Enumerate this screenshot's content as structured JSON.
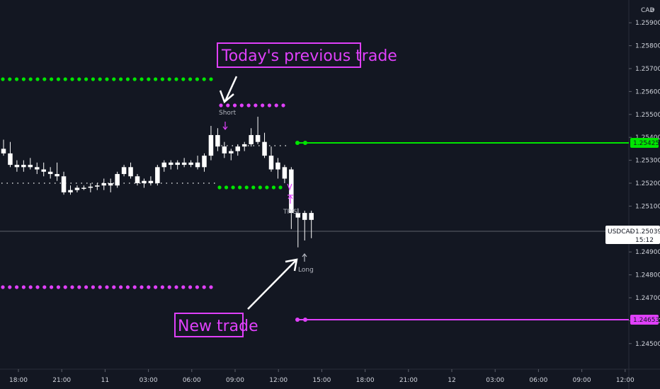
{
  "chart_data": {
    "type": "candlestick",
    "symbol": "USDCAD",
    "currency": "CAD",
    "current_price": "1.25039",
    "countdown": "15:12",
    "y_ticks": [
      "1.25900",
      "1.25800",
      "1.25700",
      "1.25600",
      "1.25500",
      "1.25400",
      "1.25300",
      "1.25200",
      "1.25100",
      "1.24900",
      "1.24800",
      "1.24700",
      "1.24600",
      "1.24500"
    ],
    "x_ticks": [
      "18:00",
      "21:00",
      "11",
      "03:00",
      "06:00",
      "09:00",
      "12:00",
      "15:00",
      "18:00",
      "21:00",
      "12",
      "03:00",
      "06:00",
      "09:00",
      "12:00"
    ],
    "price_tags": {
      "green": "1.25425",
      "magenta": "1.24653"
    },
    "candles": [
      [
        1.2535,
        1.2539,
        1.2532,
        1.2533
      ],
      [
        1.2533,
        1.2538,
        1.2527,
        1.2528
      ],
      [
        1.2528,
        1.253,
        1.2525,
        1.2527
      ],
      [
        1.2527,
        1.253,
        1.2525,
        1.2528
      ],
      [
        1.2528,
        1.2531,
        1.2526,
        1.2527
      ],
      [
        1.2527,
        1.2529,
        1.2524,
        1.2526
      ],
      [
        1.2526,
        1.2529,
        1.2523,
        1.2525
      ],
      [
        1.2525,
        1.2527,
        1.2522,
        1.2524
      ],
      [
        1.2524,
        1.2529,
        1.2521,
        1.2523
      ],
      [
        1.2523,
        1.2525,
        1.2515,
        1.2516
      ],
      [
        1.2516,
        1.2519,
        1.2515,
        1.2517
      ],
      [
        1.2517,
        1.2519,
        1.2516,
        1.2518
      ],
      [
        1.2518,
        1.2519,
        1.2517,
        1.2518
      ],
      [
        1.2518,
        1.252,
        1.2516,
        1.25185
      ],
      [
        1.25185,
        1.252,
        1.2517,
        1.2519
      ],
      [
        1.2519,
        1.2522,
        1.2517,
        1.252
      ],
      [
        1.252,
        1.2522,
        1.2516,
        1.2519
      ],
      [
        1.2519,
        1.2525,
        1.2518,
        1.2524
      ],
      [
        1.2524,
        1.2528,
        1.2523,
        1.2527
      ],
      [
        1.2527,
        1.2529,
        1.2522,
        1.2523
      ],
      [
        1.2523,
        1.2524,
        1.2519,
        1.252
      ],
      [
        1.252,
        1.2522,
        1.2518,
        1.2521
      ],
      [
        1.2521,
        1.2523,
        1.2519,
        1.252
      ],
      [
        1.252,
        1.2528,
        1.2519,
        1.2527
      ],
      [
        1.2527,
        1.253,
        1.2525,
        1.2529
      ],
      [
        1.2529,
        1.253,
        1.2526,
        1.2528
      ],
      [
        1.2528,
        1.253,
        1.2526,
        1.2529
      ],
      [
        1.2529,
        1.2531,
        1.2527,
        1.2528
      ],
      [
        1.2528,
        1.253,
        1.2527,
        1.2529
      ],
      [
        1.2529,
        1.2532,
        1.2526,
        1.2527
      ],
      [
        1.2527,
        1.2533,
        1.2525,
        1.2532
      ],
      [
        1.2532,
        1.2545,
        1.253,
        1.2541
      ],
      [
        1.2541,
        1.2544,
        1.2534,
        1.2536
      ],
      [
        1.2536,
        1.2538,
        1.2531,
        1.2533
      ],
      [
        1.2533,
        1.2535,
        1.253,
        1.2534
      ],
      [
        1.2534,
        1.2537,
        1.2532,
        1.2536
      ],
      [
        1.2536,
        1.2538,
        1.2534,
        1.2537
      ],
      [
        1.2537,
        1.2544,
        1.2536,
        1.2541
      ],
      [
        1.2541,
        1.2549,
        1.2537,
        1.2538
      ],
      [
        1.2538,
        1.2542,
        1.2531,
        1.2532
      ],
      [
        1.2532,
        1.2536,
        1.2525,
        1.2526
      ],
      [
        1.2526,
        1.2531,
        1.2522,
        1.2529
      ],
      [
        1.2527,
        1.2528,
        1.252,
        1.2522
      ],
      [
        1.2526,
        1.2527,
        1.25,
        1.2507
      ],
      [
        1.2507,
        1.2509,
        1.2492,
        1.2505
      ],
      [
        1.2507,
        1.2508,
        1.2495,
        1.2504
      ],
      [
        1.2507,
        1.2508,
        1.2496,
        1.2504
      ]
    ]
  },
  "annotations": {
    "previous_trade": "Today's previous trade",
    "new_trade": "New trade",
    "short": "Short",
    "tp_sl": "TP/SL",
    "long": "Long"
  },
  "colors": {
    "background": "#131722",
    "candle": "#ffffff",
    "green": "#00e600",
    "magenta": "#e040fb",
    "axis_text": "#d1d4dc"
  }
}
